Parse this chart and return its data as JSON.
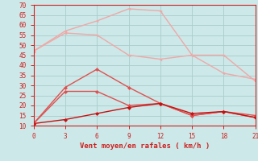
{
  "x": [
    0,
    3,
    6,
    9,
    12,
    15,
    18,
    21
  ],
  "line1_light": [
    47,
    57,
    62,
    68,
    67,
    45,
    45,
    32
  ],
  "line2_light": [
    47,
    56,
    55,
    45,
    43,
    45,
    36,
    33
  ],
  "line3_med": [
    11,
    29,
    38,
    29,
    21,
    15,
    17,
    14
  ],
  "line4_med": [
    11,
    27,
    27,
    20,
    21,
    15,
    17,
    15
  ],
  "line5_dark": [
    11,
    13,
    16,
    19,
    21,
    16,
    17,
    14
  ],
  "color_light": "#f0a8a8",
  "color_medium": "#e05050",
  "color_dark": "#c81010",
  "xlabel": "Vent moyen/en rafales ( km/h )",
  "ylim": [
    10,
    70
  ],
  "xlim": [
    0,
    21
  ],
  "yticks": [
    10,
    15,
    20,
    25,
    30,
    35,
    40,
    45,
    50,
    55,
    60,
    65,
    70
  ],
  "xticks": [
    0,
    3,
    6,
    9,
    12,
    15,
    18,
    21
  ],
  "bg_color": "#cce8e8",
  "grid_color": "#aacccc",
  "spine_color": "#cc2020"
}
